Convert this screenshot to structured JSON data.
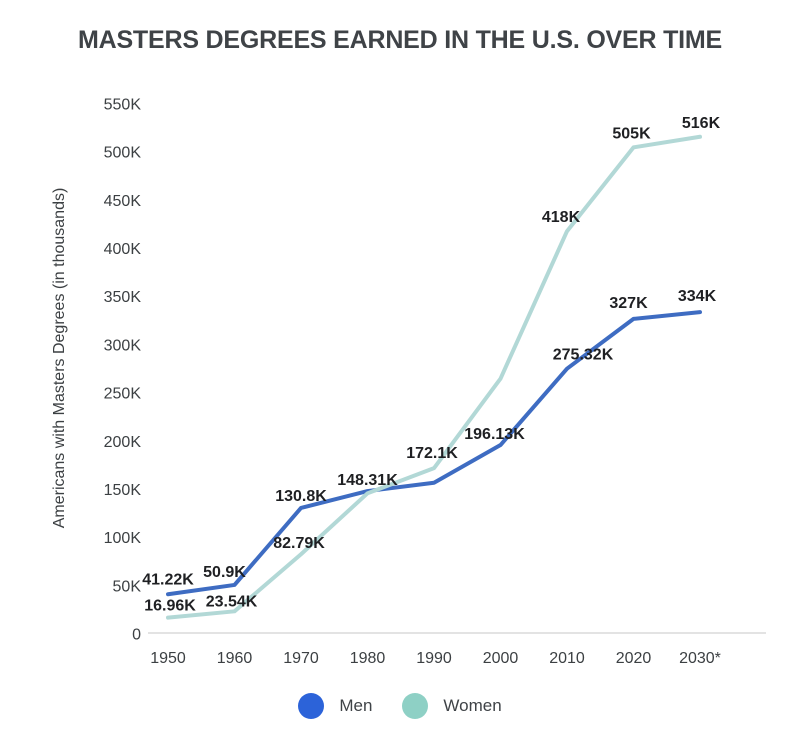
{
  "title": "MASTERS DEGREES EARNED IN THE U.S. OVER TIME",
  "colors": {
    "background": "#ffffff",
    "title_text": "#3f4347",
    "axis_text": "#3c4043",
    "data_label_text": "#1f2023",
    "axis_line": "#e3e3e3",
    "legend_text": "#3f4347",
    "men_line": "#3e6cc2",
    "men_legend_dot": "#2c63d9",
    "women_line": "#b2d8d6",
    "women_legend_dot": "#8ed0c5"
  },
  "chart_data": {
    "type": "line",
    "title": "MASTERS DEGREES EARNED IN THE U.S. OVER TIME",
    "xlabel": "",
    "ylabel": "Americans with Masters Degrees (in thousands)",
    "categories": [
      "1950",
      "1960",
      "1970",
      "1980",
      "1990",
      "2000",
      "2010",
      "2020",
      "2030*"
    ],
    "y_tick_labels": [
      "0",
      "50K",
      "100K",
      "150K",
      "200K",
      "250K",
      "300K",
      "350K",
      "400K",
      "450K",
      "500K",
      "550K"
    ],
    "ylim": [
      0,
      550
    ],
    "grid": false,
    "legend_position": "bottom-center",
    "series": [
      {
        "name": "Men",
        "line_color": "#3e6cc2",
        "legend_dot_color": "#2c63d9",
        "values": [
          41.22,
          50.9,
          130.8,
          148.31,
          157,
          196.13,
          275.32,
          327,
          334
        ],
        "point_labels": [
          "41.22K",
          "50.9K",
          "130.8K",
          "148.31K",
          "",
          "196.13K",
          "275.32K",
          "327K",
          "334K"
        ],
        "label_offsets": [
          [
            0,
            -10
          ],
          [
            -10,
            -8
          ],
          [
            0,
            -7
          ],
          [
            0,
            -6
          ],
          [
            0,
            0
          ],
          [
            -6,
            -6
          ],
          [
            16,
            -9
          ],
          [
            -5,
            -11
          ],
          [
            -3,
            -11
          ]
        ]
      },
      {
        "name": "Women",
        "line_color": "#b2d8d6",
        "legend_dot_color": "#8ed0c5",
        "values": [
          16.96,
          23.54,
          82.79,
          146,
          172.1,
          265,
          418,
          505,
          516
        ],
        "point_labels": [
          "16.96K",
          "23.54K",
          "82.79K",
          "",
          "172.1K",
          "",
          "418K",
          "505K",
          "516K"
        ],
        "label_offsets": [
          [
            2,
            -7
          ],
          [
            -3,
            -5
          ],
          [
            -2,
            -6
          ],
          [
            0,
            0
          ],
          [
            -2,
            -10
          ],
          [
            0,
            0
          ],
          [
            -6,
            -9
          ],
          [
            -2,
            -9
          ],
          [
            1,
            -9
          ]
        ]
      }
    ]
  },
  "legend": {
    "men_label": "Men",
    "women_label": "Women"
  }
}
